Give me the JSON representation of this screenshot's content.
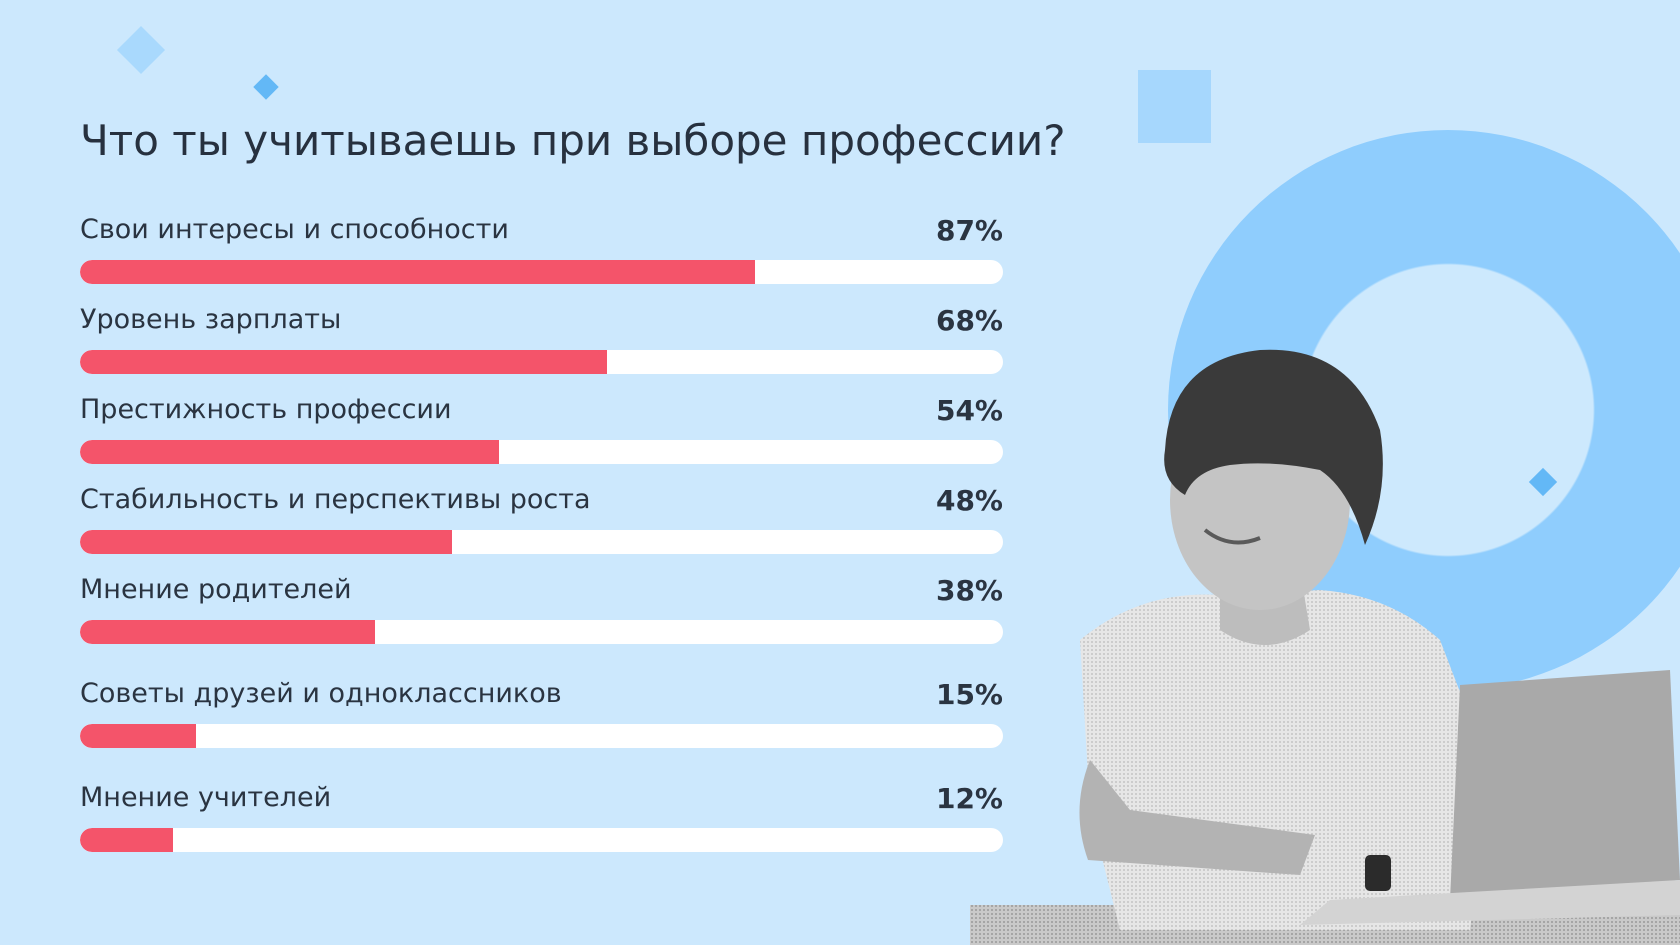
{
  "chart_data": {
    "type": "bar",
    "orientation": "horizontal",
    "title": "Что ты учитываешь при выборе профессии?",
    "categories": [
      "Свои интересы и способности",
      "Уровень зарплаты",
      "Престижность профессии",
      "Стабильность и перспективы роста",
      "Мнение родителей",
      "Советы друзей и одноклассников",
      "Мнение учителей"
    ],
    "values": [
      87,
      68,
      54,
      48,
      38,
      15,
      12
    ],
    "value_labels": [
      "87%",
      "68%",
      "54%",
      "48%",
      "38%",
      "15%",
      "12%"
    ],
    "xlim": [
      0,
      100
    ],
    "grid": false,
    "bar_color": "#f4546a",
    "track_color": "#ffffff"
  },
  "colors": {
    "background": "#cce8fd",
    "accent_blue": "#8fcdfd",
    "text": "#27313f"
  },
  "illustration": "smiling-boy-with-laptop"
}
